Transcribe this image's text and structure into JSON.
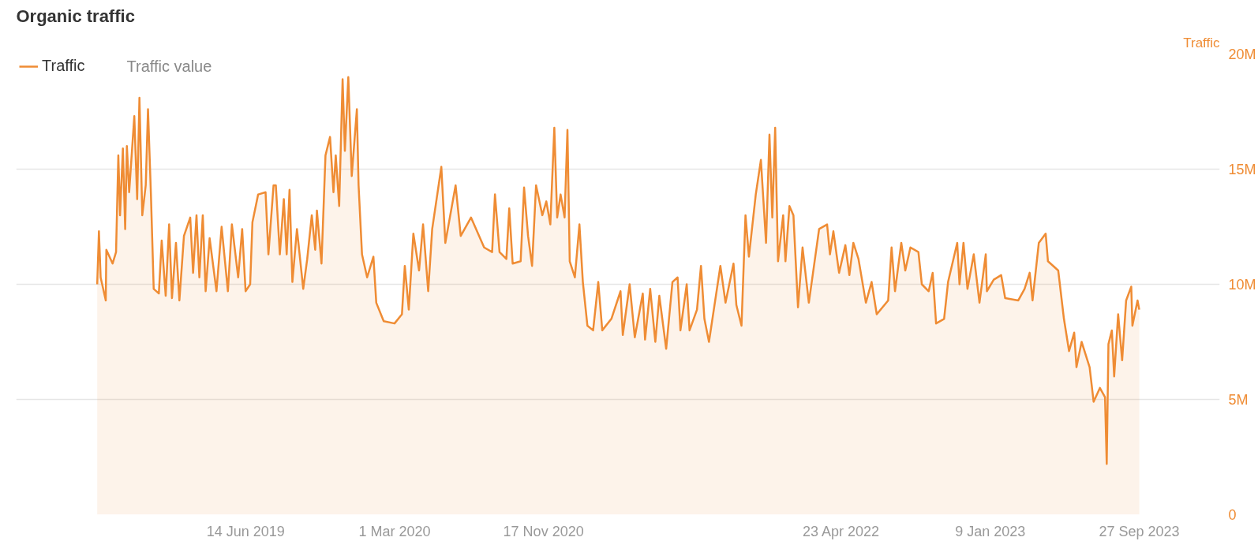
{
  "chart_data": {
    "type": "area",
    "title": "Organic traffic",
    "ylabel": "Traffic",
    "annotations": [
      "Traffic value"
    ],
    "legend": "top left",
    "grid": "y",
    "line_style": "solid",
    "marker": "none",
    "xlim": [
      "2018-05-08",
      "2024-02-15"
    ],
    "xticks": [
      {
        "value": "2019-06-14",
        "label": "14 Jun 2019"
      },
      {
        "value": "2020-03-01",
        "label": "1 Mar 2020"
      },
      {
        "value": "2020-11-17",
        "label": "17 Nov 2020"
      },
      {
        "value": "2022-04-23",
        "label": "23 Apr 2022"
      },
      {
        "value": "2023-01-09",
        "label": "9 Jan 2023"
      },
      {
        "value": "2023-09-27",
        "label": "27 Sep 2023"
      }
    ],
    "ylim": [
      0,
      20
    ],
    "yticks": [
      0,
      {
        "value": 5,
        "label": "5M"
      },
      {
        "value": 10,
        "label": "10M"
      },
      {
        "value": 15,
        "label": "15M"
      },
      {
        "value": 20,
        "label": "20M"
      }
    ],
    "x": [
      "2018-09-27",
      "2018-09-30",
      "2018-10-03",
      "2018-10-12",
      "2018-10-13",
      "2018-10-24",
      "2018-10-30",
      "2018-11-03",
      "2018-11-06",
      "2018-11-11",
      "2018-11-15",
      "2018-11-18",
      "2018-11-22",
      "2018-12-01",
      "2018-12-06",
      "2018-12-10",
      "2018-12-15",
      "2018-12-21",
      "2018-12-25",
      "2018-12-30",
      "2019-01-04",
      "2019-01-13",
      "2019-01-18",
      "2019-01-25",
      "2019-01-31",
      "2019-02-05",
      "2019-02-12",
      "2019-02-18",
      "2019-02-26",
      "2019-03-09",
      "2019-03-14",
      "2019-03-20",
      "2019-03-25",
      "2019-03-31",
      "2019-04-05",
      "2019-04-12",
      "2019-04-24",
      "2019-05-03",
      "2019-05-14",
      "2019-05-21",
      "2019-06-01",
      "2019-06-08",
      "2019-06-14",
      "2019-06-22",
      "2019-06-26",
      "2019-07-06",
      "2019-07-19",
      "2019-07-24",
      "2019-08-02",
      "2019-08-06",
      "2019-08-13",
      "2019-08-20",
      "2019-08-25",
      "2019-08-30",
      "2019-09-04",
      "2019-09-12",
      "2019-09-23",
      "2019-09-30",
      "2019-10-08",
      "2019-10-14",
      "2019-10-17",
      "2019-10-25",
      "2019-11-01",
      "2019-11-09",
      "2019-11-15",
      "2019-11-19",
      "2019-11-25",
      "2019-12-01",
      "2019-12-05",
      "2019-12-11",
      "2019-12-17",
      "2019-12-26",
      "2019-12-29",
      "2020-01-04",
      "2020-01-13",
      "2020-01-24",
      "2020-01-29",
      "2020-02-11",
      "2020-03-01",
      "2020-03-14",
      "2020-03-19",
      "2020-03-26",
      "2020-04-03",
      "2020-04-13",
      "2020-04-20",
      "2020-04-29",
      "2020-05-06",
      "2020-05-22",
      "2020-05-29",
      "2020-06-16",
      "2020-06-25",
      "2020-07-13",
      "2020-08-05",
      "2020-08-19",
      "2020-08-24",
      "2020-09-01",
      "2020-09-13",
      "2020-09-18",
      "2020-09-24",
      "2020-10-08",
      "2020-10-14",
      "2020-10-21",
      "2020-10-28",
      "2020-11-04",
      "2020-11-15",
      "2020-11-22",
      "2020-11-29",
      "2020-12-06",
      "2020-12-11",
      "2020-12-17",
      "2020-12-24",
      "2020-12-29",
      "2021-01-02",
      "2021-01-11",
      "2021-01-19",
      "2021-01-25",
      "2021-02-02",
      "2021-02-12",
      "2021-02-21",
      "2021-02-28",
      "2021-03-16",
      "2021-04-01",
      "2021-04-05",
      "2021-04-17",
      "2021-04-26",
      "2021-05-10",
      "2021-05-14",
      "2021-05-23",
      "2021-06-01",
      "2021-06-08",
      "2021-06-20",
      "2021-07-01",
      "2021-07-10",
      "2021-07-15",
      "2021-07-26",
      "2021-07-31",
      "2021-08-13",
      "2021-08-20",
      "2021-08-26",
      "2021-09-03",
      "2021-09-23",
      "2021-10-02",
      "2021-10-16",
      "2021-10-21",
      "2021-10-30",
      "2021-11-06",
      "2021-11-12",
      "2021-11-24",
      "2021-12-03",
      "2021-12-12",
      "2021-12-18",
      "2021-12-23",
      "2021-12-28",
      "2022-01-02",
      "2022-01-11",
      "2022-01-15",
      "2022-01-22",
      "2022-01-29",
      "2022-02-06",
      "2022-02-14",
      "2022-02-25",
      "2022-03-15",
      "2022-03-29",
      "2022-04-03",
      "2022-04-09",
      "2022-04-19",
      "2022-04-30",
      "2022-05-07",
      "2022-05-14",
      "2022-05-23",
      "2022-06-05",
      "2022-06-15",
      "2022-06-24",
      "2022-07-14",
      "2022-07-20",
      "2022-07-26",
      "2022-08-06",
      "2022-08-13",
      "2022-08-22",
      "2022-09-05",
      "2022-09-11",
      "2022-09-23",
      "2022-09-30",
      "2022-10-06",
      "2022-10-20",
      "2022-10-27",
      "2022-11-12",
      "2022-11-16",
      "2022-11-23",
      "2022-11-30",
      "2022-12-11",
      "2022-12-21",
      "2023-01-01",
      "2023-01-03",
      "2023-01-15",
      "2023-01-28",
      "2023-02-04",
      "2023-02-27",
      "2023-03-10",
      "2023-03-19",
      "2023-03-24",
      "2023-04-04",
      "2023-04-16",
      "2023-04-20",
      "2023-05-08",
      "2023-05-18",
      "2023-05-27",
      "2023-06-05",
      "2023-06-09",
      "2023-06-18",
      "2023-07-02",
      "2023-07-09",
      "2023-07-20",
      "2023-07-29",
      "2023-08-01",
      "2023-08-04",
      "2023-08-10",
      "2023-08-14",
      "2023-08-21",
      "2023-08-28",
      "2023-09-04",
      "2023-09-13",
      "2023-09-15",
      "2023-09-24",
      "2023-09-27"
    ],
    "series": [
      {
        "name": "Traffic",
        "color": "#ef8c34",
        "values": [
          10.0,
          12.3,
          10.3,
          9.3,
          11.5,
          10.9,
          11.4,
          15.6,
          13.0,
          15.9,
          12.4,
          16.0,
          14.0,
          17.3,
          13.7,
          18.1,
          13.0,
          14.3,
          17.6,
          14.0,
          9.8,
          9.6,
          11.9,
          9.5,
          12.6,
          9.4,
          11.8,
          9.3,
          12.1,
          12.9,
          10.5,
          13.0,
          10.3,
          13.0,
          9.7,
          12.0,
          9.7,
          12.5,
          9.7,
          12.6,
          10.3,
          12.4,
          9.7,
          10.0,
          12.7,
          13.9,
          14.0,
          11.3,
          14.3,
          14.3,
          11.3,
          13.7,
          11.3,
          14.1,
          10.1,
          12.4,
          9.8,
          11.1,
          13.0,
          11.5,
          13.2,
          10.9,
          15.6,
          16.4,
          14.0,
          15.6,
          13.4,
          18.9,
          15.8,
          19.0,
          14.7,
          17.6,
          14.3,
          11.3,
          10.3,
          11.2,
          9.2,
          8.4,
          8.3,
          8.7,
          10.8,
          8.9,
          12.2,
          10.6,
          12.6,
          9.7,
          12.4,
          15.1,
          11.8,
          14.3,
          12.1,
          12.9,
          11.6,
          11.4,
          13.9,
          11.4,
          11.1,
          13.3,
          10.9,
          11.0,
          14.2,
          12.1,
          10.8,
          14.3,
          13.0,
          13.6,
          12.6,
          16.8,
          12.9,
          13.9,
          12.9,
          16.7,
          11.0,
          10.3,
          12.6,
          10.1,
          8.2,
          8.0,
          10.1,
          8.0,
          8.5,
          9.7,
          7.8,
          10.0,
          7.7,
          9.6,
          7.6,
          9.8,
          7.5,
          9.5,
          7.2,
          10.1,
          10.3,
          8.0,
          10.0,
          8.0,
          8.9,
          10.8,
          8.5,
          7.5,
          10.8,
          9.2,
          10.9,
          9.1,
          8.2,
          13.0,
          11.2,
          13.9,
          15.4,
          11.8,
          16.5,
          12.9,
          16.8,
          11.0,
          13.0,
          11.0,
          13.4,
          13.0,
          9.0,
          11.6,
          9.2,
          12.4,
          12.6,
          11.3,
          12.3,
          10.5,
          11.7,
          10.4,
          11.8,
          11.1,
          9.2,
          10.1,
          8.7,
          9.3,
          11.6,
          9.7,
          11.8,
          10.6,
          11.6,
          11.4,
          10.0,
          9.7,
          10.5,
          8.3,
          8.5,
          10.1,
          11.8,
          10.0,
          11.8,
          9.8,
          11.3,
          9.2,
          11.3,
          9.7,
          10.2,
          10.4,
          9.4,
          9.3,
          9.8,
          10.5,
          9.3,
          11.8,
          12.2,
          11.0,
          10.6,
          8.5,
          7.1,
          7.9,
          6.4,
          7.5,
          6.4,
          4.9,
          5.5,
          5.1,
          2.2,
          7.4,
          8.0,
          6.0,
          8.7,
          6.7,
          9.3,
          9.9,
          8.2,
          9.3,
          8.9
        ]
      }
    ]
  }
}
